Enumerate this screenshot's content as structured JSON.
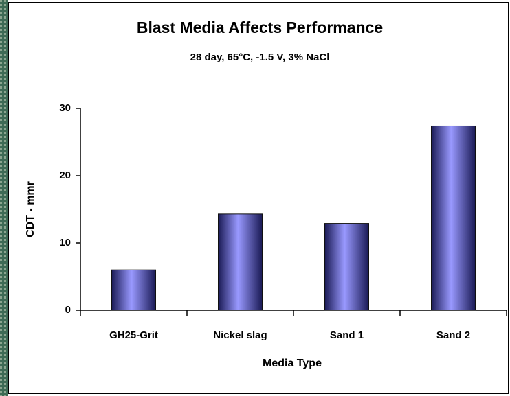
{
  "chart_data": {
    "type": "bar",
    "title": "Blast Media Affects Performance",
    "subtitle": "28 day, 65°C, -1.5 V, 3% NaCl",
    "y_label": "CDT - mmr",
    "x_label": "Media Type",
    "categories": [
      "GH25-Grit",
      "Nickel slag",
      "Sand 1",
      "Sand 2"
    ],
    "values": [
      6,
      14.3,
      12.9,
      27.4
    ],
    "color": "#9999ff",
    "ylim": [
      0,
      30
    ],
    "yticks": [
      0,
      10,
      20,
      30
    ],
    "grid": false
  }
}
